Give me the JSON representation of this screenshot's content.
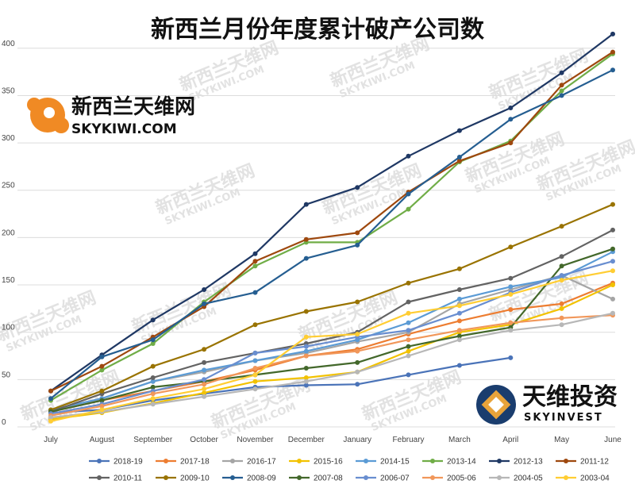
{
  "watermark": {
    "cn": "新西兰天维网",
    "en": "SKYKIWI.COM"
  },
  "logo_left": {
    "cn": "新西兰天维网",
    "en": "SKYKIWI.COM",
    "color": "#f08a24"
  },
  "logo_right": {
    "cn": "天维投资",
    "en": "SKYINVEST",
    "color": "#1a3d6e",
    "accent": "#e8a33a"
  },
  "chart_data": {
    "type": "line",
    "title": "新西兰月份年度累计破产公司数",
    "xlabel": "",
    "ylabel": "",
    "ylim": [
      0,
      430
    ],
    "yticks": [
      0,
      50,
      100,
      150,
      200,
      250,
      300,
      350,
      400
    ],
    "grid": true,
    "legend_position": "bottom",
    "categories": [
      "July",
      "August",
      "September",
      "October",
      "November",
      "December",
      "January",
      "February",
      "March",
      "April",
      "May",
      "June"
    ],
    "series": [
      {
        "name": "2018-19",
        "color": "#4a73b8",
        "values": [
          15,
          18,
          28,
          35,
          42,
          44,
          45,
          55,
          65,
          73,
          null,
          null
        ]
      },
      {
        "name": "2017-18",
        "color": "#ed7d31",
        "values": [
          16,
          28,
          38,
          48,
          60,
          75,
          82,
          98,
          112,
          124,
          130,
          152
        ]
      },
      {
        "name": "2016-17",
        "color": "#a5a5a5",
        "values": [
          18,
          30,
          48,
          58,
          70,
          78,
          90,
          100,
          130,
          145,
          160,
          135
        ]
      },
      {
        "name": "2015-16",
        "color": "#f2c200",
        "values": [
          8,
          15,
          25,
          36,
          48,
          52,
          58,
          80,
          100,
          108,
          125,
          150
        ]
      },
      {
        "name": "2014-15",
        "color": "#5b9bd5",
        "values": [
          18,
          30,
          48,
          60,
          70,
          80,
          92,
          110,
          135,
          148,
          158,
          185
        ]
      },
      {
        "name": "2013-14",
        "color": "#70ad47",
        "values": [
          28,
          60,
          88,
          132,
          170,
          195,
          195,
          230,
          280,
          302,
          355,
          394
        ]
      },
      {
        "name": "2012-13",
        "color": "#1f3864",
        "values": [
          38,
          76,
          113,
          145,
          183,
          235,
          253,
          286,
          313,
          337,
          374,
          415
        ]
      },
      {
        "name": "2011-12",
        "color": "#9e480e",
        "values": [
          38,
          64,
          95,
          127,
          175,
          198,
          205,
          248,
          281,
          300,
          361,
          396
        ]
      },
      {
        "name": "2010-11",
        "color": "#636363",
        "values": [
          16,
          35,
          52,
          68,
          78,
          88,
          100,
          132,
          145,
          157,
          180,
          208
        ]
      },
      {
        "name": "2009-10",
        "color": "#997300",
        "values": [
          18,
          38,
          64,
          82,
          108,
          122,
          132,
          152,
          167,
          190,
          212,
          235
        ]
      },
      {
        "name": "2008-09",
        "color": "#255e91",
        "values": [
          30,
          74,
          92,
          130,
          142,
          178,
          192,
          246,
          285,
          325,
          350,
          377
        ]
      },
      {
        "name": "2007-08",
        "color": "#43682b",
        "values": [
          16,
          28,
          42,
          48,
          55,
          62,
          68,
          85,
          96,
          105,
          170,
          188
        ]
      },
      {
        "name": "2006-07",
        "color": "#698ed0",
        "values": [
          14,
          24,
          38,
          50,
          78,
          85,
          95,
          102,
          120,
          142,
          160,
          175
        ]
      },
      {
        "name": "2005-06",
        "color": "#f1975a",
        "values": [
          12,
          22,
          35,
          45,
          62,
          75,
          80,
          92,
          102,
          110,
          115,
          118
        ]
      },
      {
        "name": "2004-05",
        "color": "#b7b7b7",
        "values": [
          10,
          16,
          24,
          32,
          40,
          48,
          58,
          75,
          92,
          102,
          108,
          120
        ]
      },
      {
        "name": "2003-04",
        "color": "#ffcd33",
        "values": [
          6,
          18,
          30,
          40,
          55,
          95,
          98,
          120,
          128,
          140,
          155,
          165
        ]
      }
    ]
  }
}
